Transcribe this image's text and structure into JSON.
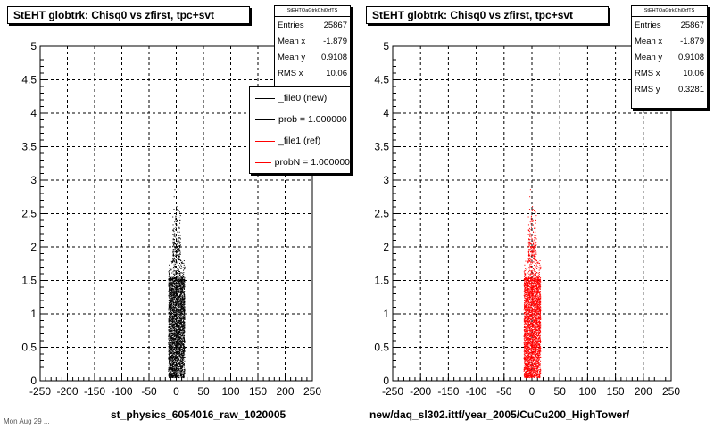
{
  "chart_data": [
    {
      "type": "scatter",
      "title": "StEHT globtrk: Chisq0 vs zfirst, tpc+svt",
      "xlim": [
        -250,
        250
      ],
      "ylim": [
        0,
        5
      ],
      "x_ticks": [
        "-250",
        "-200",
        "-150",
        "-100",
        "-50",
        "0",
        "50",
        "100",
        "150",
        "200",
        "250"
      ],
      "y_ticks": [
        "0",
        "0.5",
        "1",
        "1.5",
        "2",
        "2.5",
        "3",
        "3.5",
        "4",
        "4.5",
        "5"
      ],
      "grid": true,
      "point_color": "#000000",
      "stats": {
        "name": "StEHTQaGtrkChi0zfTS",
        "rows": [
          {
            "label": "Entries",
            "value": "25867"
          },
          {
            "label": "Mean x",
            "value": "-1.879"
          },
          {
            "label": "Mean y",
            "value": "0.9108"
          },
          {
            "label": "RMS x",
            "value": "10.06"
          }
        ]
      },
      "legend": {
        "placement": "top-right",
        "items": [
          {
            "label": "_file0 (new)",
            "color": "#000000"
          },
          {
            "label": "prob = 1.000000",
            "color": "#000000"
          },
          {
            "label": "_file1 (ref)",
            "color": "#ff0000"
          },
          {
            "label": "probN = 1.000000",
            "color": "#ff0000"
          }
        ]
      },
      "xlabel": "st_physics_6054016_raw_1020005",
      "distribution": {
        "x_center": 0,
        "x_halfwidth": 15,
        "y_core": [
          0,
          1.5
        ],
        "y_max": 3.3
      }
    },
    {
      "type": "scatter",
      "title": "StEHT globtrk: Chisq0 vs zfirst, tpc+svt",
      "xlim": [
        -250,
        250
      ],
      "ylim": [
        0,
        5
      ],
      "x_ticks": [
        "-250",
        "-200",
        "-150",
        "-100",
        "-50",
        "0",
        "50",
        "100",
        "150",
        "200",
        "250"
      ],
      "y_ticks": [
        "0",
        "0.5",
        "1",
        "1.5",
        "2",
        "2.5",
        "3",
        "3.5",
        "4",
        "4.5",
        "5"
      ],
      "grid": true,
      "point_color": "#ff0000",
      "stats": {
        "name": "StEHTQaGtrkChi0zfTS",
        "rows": [
          {
            "label": "Entries",
            "value": "25867"
          },
          {
            "label": "Mean x",
            "value": "-1.879"
          },
          {
            "label": "Mean y",
            "value": "0.9108"
          },
          {
            "label": "RMS x",
            "value": "10.06"
          },
          {
            "label": "RMS y",
            "value": "0.3281"
          }
        ]
      },
      "xlabel": "new/daq_sl302.ittf/year_2005/CuCu200_HighTower/",
      "distribution": {
        "x_center": 0,
        "x_halfwidth": 15,
        "y_core": [
          0,
          1.5
        ],
        "y_max": 3.3
      }
    }
  ],
  "corner_text": "Mon Aug 29 ..."
}
